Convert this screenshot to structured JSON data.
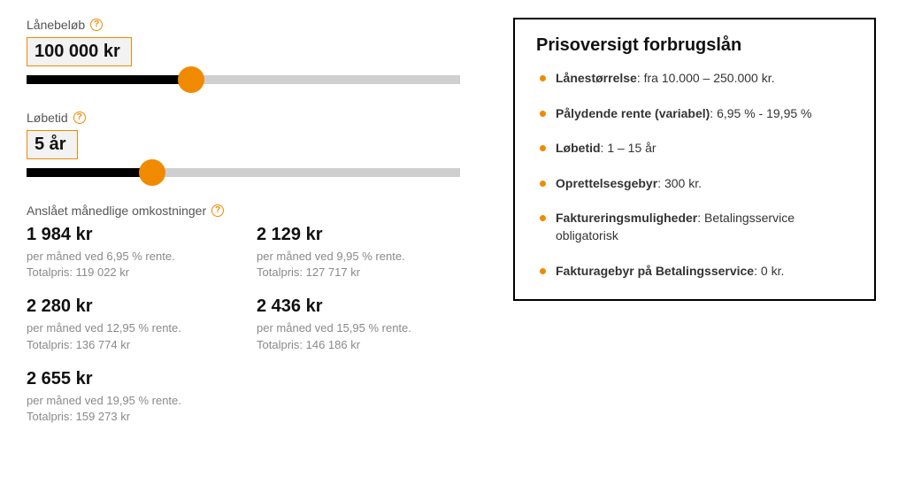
{
  "colors": {
    "accent": "#f08a00",
    "track_bg": "#cfcfcf",
    "track_fill": "#000000",
    "value_box_bg": "#f2f2f2",
    "text_muted": "#8a8a8a",
    "border_box": "#000000"
  },
  "loan_amount": {
    "label": "Lånebeløb",
    "value_display": "100 000 kr",
    "slider_fill_percent": 38
  },
  "term": {
    "label": "Løbetid",
    "value_display": "5 år",
    "slider_fill_percent": 29
  },
  "costs": {
    "header": "Anslået månedlige omkostninger",
    "items": [
      {
        "amount": "1 984 kr",
        "line1": "per måned ved 6,95 % rente.",
        "line2": "Totalpris: 119 022 kr"
      },
      {
        "amount": "2 129 kr",
        "line1": "per måned ved 9,95 % rente.",
        "line2": "Totalpris: 127 717 kr"
      },
      {
        "amount": "2 280 kr",
        "line1": "per måned ved 12,95 % rente.",
        "line2": "Totalpris: 136 774 kr"
      },
      {
        "amount": "2 436 kr",
        "line1": "per måned ved 15,95 % rente.",
        "line2": "Totalpris: 146 186 kr"
      },
      {
        "amount": "2 655 kr",
        "line1": "per måned ved 19,95 % rente.",
        "line2": "Totalpris: 159 273 kr"
      }
    ]
  },
  "overview": {
    "title": "Prisoversigt forbrugslån",
    "items": [
      {
        "key": "Lånestørrelse",
        "value": ": fra 10.000 – 250.000 kr."
      },
      {
        "key": "Pålydende rente (variabel)",
        "value": ": 6,95 % - 19,95 %"
      },
      {
        "key": "Løbetid",
        "value": ": 1 – 15 år"
      },
      {
        "key": "Oprettelsesgebyr",
        "value": ": 300 kr."
      },
      {
        "key": "Faktureringsmuligheder",
        "value": ": Betalingsservice obligatorisk"
      },
      {
        "key": "Fakturagebyr på Betalingsservice",
        "value": ": 0 kr."
      }
    ]
  }
}
